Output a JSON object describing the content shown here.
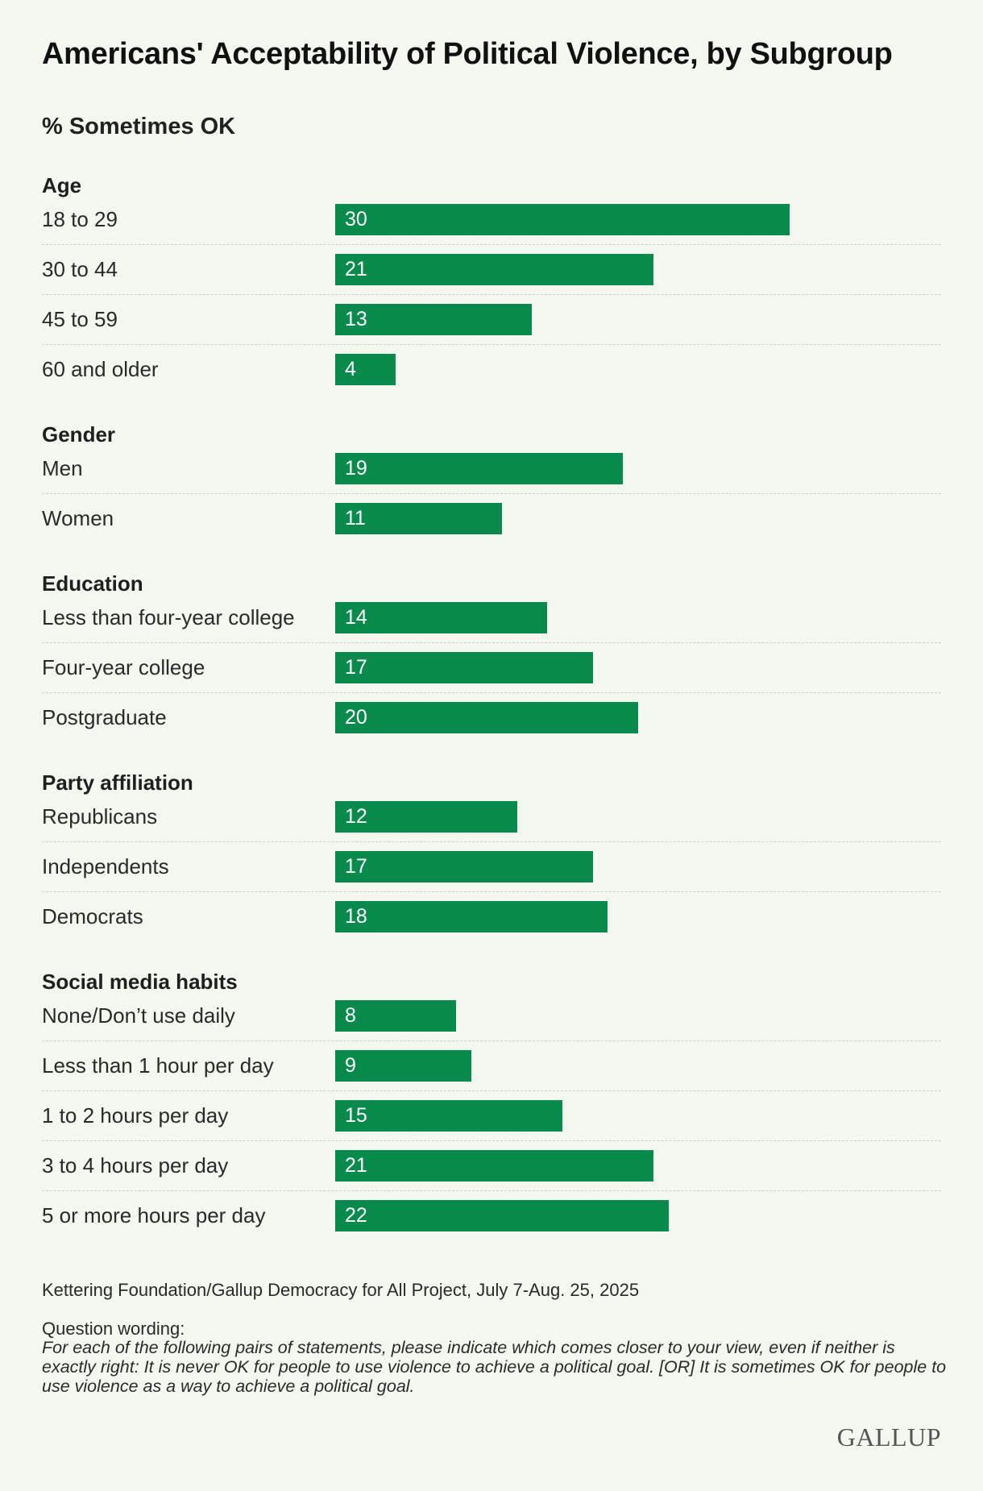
{
  "title": "Americans' Acceptability of Political Violence, by Subgroup",
  "subtitle": "% Sometimes OK",
  "colors": {
    "bar": "#078a4c",
    "background": "#f2f7ef"
  },
  "chart_data": {
    "type": "bar",
    "orientation": "horizontal",
    "title": "Americans' Acceptability of Political Violence, by Subgroup",
    "ylabel": "% Sometimes OK",
    "xlim": [
      0,
      30
    ],
    "groups": [
      {
        "name": "Age",
        "categories": [
          "18 to 29",
          "30 to 44",
          "45 to 59",
          "60 and older"
        ],
        "values": [
          30,
          21,
          13,
          4
        ]
      },
      {
        "name": "Gender",
        "categories": [
          "Men",
          "Women"
        ],
        "values": [
          19,
          11
        ]
      },
      {
        "name": "Education",
        "categories": [
          "Less than four-year college",
          "Four-year college",
          "Postgraduate"
        ],
        "values": [
          14,
          17,
          20
        ]
      },
      {
        "name": "Party affiliation",
        "categories": [
          "Republicans",
          "Independents",
          "Democrats"
        ],
        "values": [
          12,
          17,
          18
        ]
      },
      {
        "name": "Social media habits",
        "categories": [
          "None/Don’t use daily",
          "Less than 1 hour per day",
          "1 to 2 hours per day",
          "3 to 4 hours per day",
          "5 or more hours per day"
        ],
        "values": [
          8,
          9,
          15,
          21,
          22
        ]
      }
    ]
  },
  "source": "Kettering Foundation/Gallup Democracy for All Project, July 7-Aug. 25, 2025",
  "question_wording_label": "Question wording:",
  "question_wording": "For each of the following pairs of statements, please indicate which comes closer to your view, even if neither is exactly right: It is never OK for people to use violence to achieve a political goal. [OR] It is sometimes OK for people to use violence as a way to achieve a political goal.",
  "logo": "GALLUP"
}
